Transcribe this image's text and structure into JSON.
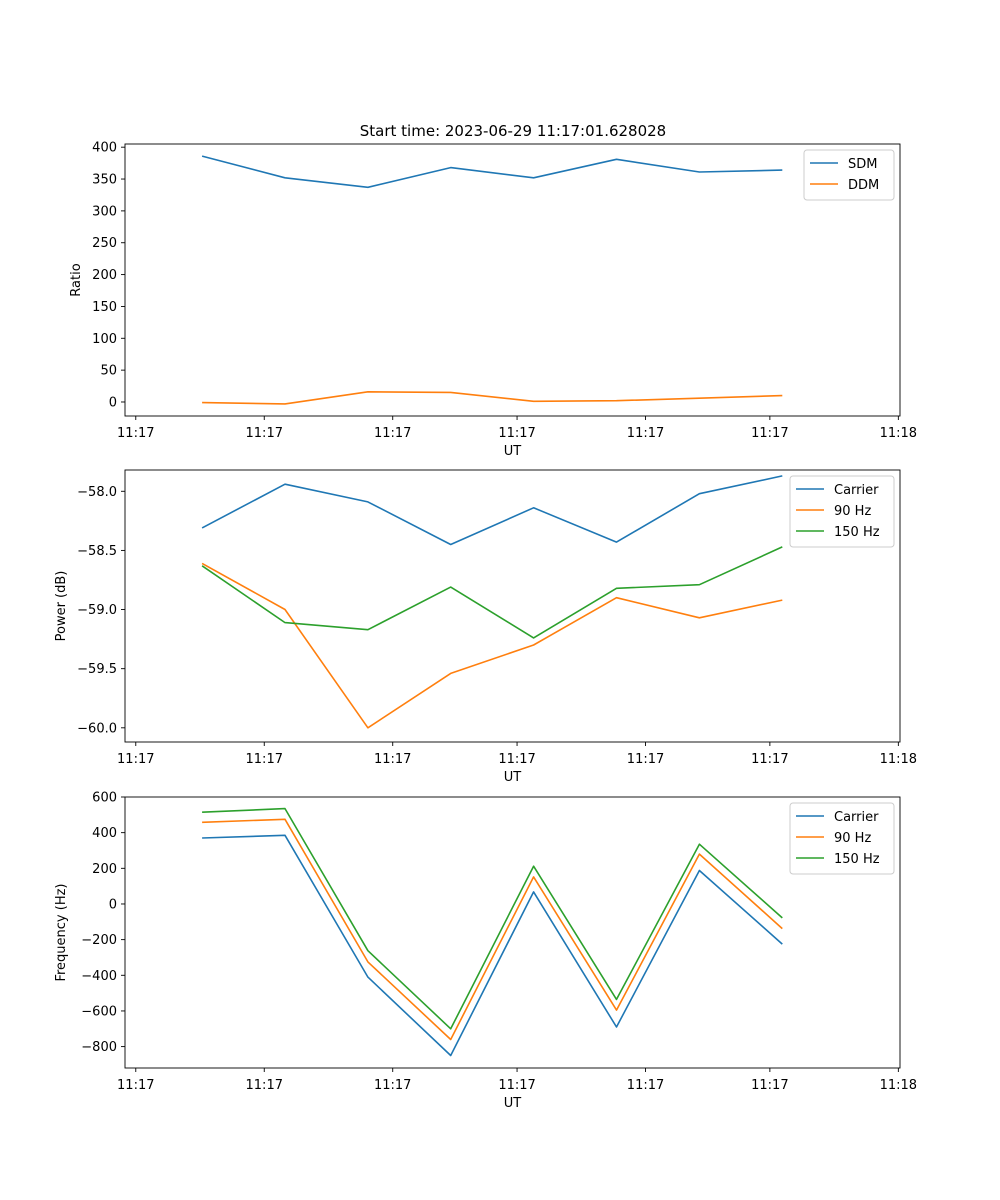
{
  "figure_title": "Start time: 2023-06-29 11:17:01.628028",
  "chart_data": [
    {
      "type": "line",
      "xlabel": "UT",
      "ylabel": "Ratio",
      "x": [
        1,
        2,
        3,
        4,
        5,
        6,
        7,
        8
      ],
      "xticks": [
        0.2,
        1.75,
        3.3,
        4.8,
        6.35,
        7.85,
        9.4
      ],
      "xtick_labels": [
        "11:17",
        "11:17",
        "11:17",
        "11:17",
        "11:17",
        "11:17",
        "11:18"
      ],
      "xlim": [
        0.07,
        9.42
      ],
      "ylim": [
        -22,
        405
      ],
      "yticks": [
        0,
        50,
        100,
        150,
        200,
        250,
        300,
        350,
        400
      ],
      "ytick_labels": [
        "0",
        "50",
        "100",
        "150",
        "200",
        "250",
        "300",
        "350",
        "400"
      ],
      "legend": "top-right",
      "series": [
        {
          "name": "SDM",
          "color": "#1f77b4",
          "values": [
            386,
            352,
            337,
            368,
            352,
            381,
            361,
            364
          ]
        },
        {
          "name": "DDM",
          "color": "#ff7f0e",
          "values": [
            -1,
            -3,
            16,
            15,
            1,
            2,
            6,
            10
          ]
        }
      ]
    },
    {
      "type": "line",
      "xlabel": "UT",
      "ylabel": "Power (dB)",
      "x": [
        1,
        2,
        3,
        4,
        5,
        6,
        7,
        8
      ],
      "xticks": [
        0.2,
        1.75,
        3.3,
        4.8,
        6.35,
        7.85,
        9.4
      ],
      "xtick_labels": [
        "11:17",
        "11:17",
        "11:17",
        "11:17",
        "11:17",
        "11:17",
        "11:18"
      ],
      "xlim": [
        0.07,
        9.42
      ],
      "ylim": [
        -60.12,
        -57.82
      ],
      "yticks": [
        -58.0,
        -58.5,
        -59.0,
        -59.5,
        -60.0
      ],
      "ytick_labels": [
        "−58.0",
        "−58.5",
        "−59.0",
        "−59.5",
        "−60.0"
      ],
      "legend": "top-right",
      "series": [
        {
          "name": "Carrier",
          "color": "#1f77b4",
          "values": [
            -58.31,
            -57.94,
            -58.09,
            -58.45,
            -58.14,
            -58.43,
            -58.02,
            -57.87
          ]
        },
        {
          "name": "90 Hz",
          "color": "#ff7f0e",
          "values": [
            -58.61,
            -59.0,
            -60.0,
            -59.54,
            -59.3,
            -58.9,
            -59.07,
            -58.92
          ]
        },
        {
          "name": "150 Hz",
          "color": "#2ca02c",
          "values": [
            -58.63,
            -59.11,
            -59.17,
            -58.81,
            -59.24,
            -58.82,
            -58.79,
            -58.47
          ]
        }
      ]
    },
    {
      "type": "line",
      "xlabel": "UT",
      "ylabel": "Frequency (Hz)",
      "x": [
        1,
        2,
        3,
        4,
        5,
        6,
        7,
        8
      ],
      "xticks": [
        0.2,
        1.75,
        3.3,
        4.8,
        6.35,
        7.85,
        9.4
      ],
      "xtick_labels": [
        "11:17",
        "11:17",
        "11:17",
        "11:17",
        "11:17",
        "11:17",
        "11:18"
      ],
      "xlim": [
        0.07,
        9.42
      ],
      "ylim": [
        -920,
        600
      ],
      "yticks": [
        600,
        400,
        200,
        0,
        -200,
        -400,
        -600,
        -800
      ],
      "ytick_labels": [
        "600",
        "400",
        "200",
        "0",
        "−200",
        "−400",
        "−600",
        "−800"
      ],
      "legend": "top-right",
      "series": [
        {
          "name": "Carrier",
          "color": "#1f77b4",
          "values": [
            370,
            385,
            -410,
            -850,
            68,
            -690,
            188,
            -225
          ]
        },
        {
          "name": "90 Hz",
          "color": "#ff7f0e",
          "values": [
            458,
            475,
            -325,
            -760,
            152,
            -595,
            280,
            -138
          ]
        },
        {
          "name": "150 Hz",
          "color": "#2ca02c",
          "values": [
            515,
            535,
            -262,
            -700,
            212,
            -535,
            335,
            -78
          ]
        }
      ]
    }
  ]
}
